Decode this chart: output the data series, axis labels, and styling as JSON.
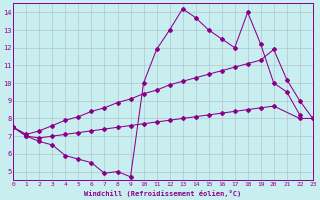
{
  "xlabel": "Windchill (Refroidissement éolien,°C)",
  "bg_color": "#c8eef0",
  "line_color": "#8b008b",
  "grid_color": "#b0c8d0",
  "xlim": [
    0,
    23
  ],
  "ylim": [
    4.5,
    14.5
  ],
  "yticks": [
    5,
    6,
    7,
    8,
    9,
    10,
    11,
    12,
    13,
    14
  ],
  "xticks": [
    0,
    1,
    2,
    3,
    4,
    5,
    6,
    7,
    8,
    9,
    10,
    11,
    12,
    13,
    14,
    15,
    16,
    17,
    18,
    19,
    20,
    21,
    22,
    23
  ],
  "line1_x": [
    0,
    1,
    2,
    3,
    4,
    5,
    6,
    7,
    8,
    9,
    10,
    11,
    12,
    13,
    14,
    15,
    16,
    17,
    18,
    19,
    20,
    21,
    22
  ],
  "line1_y": [
    7.5,
    7.0,
    6.7,
    6.5,
    5.9,
    5.7,
    5.5,
    4.9,
    5.0,
    4.7,
    10.0,
    11.9,
    13.0,
    14.2,
    13.7,
    13.0,
    12.5,
    12.0,
    14.0,
    12.2,
    10.0,
    9.5,
    8.2
  ],
  "line2_x": [
    0,
    1,
    2,
    3,
    4,
    5,
    6,
    7,
    8,
    9,
    10,
    11,
    12,
    13,
    14,
    15,
    16,
    17,
    18,
    19,
    20,
    21,
    22,
    23
  ],
  "line2_y": [
    7.5,
    7.1,
    7.3,
    7.6,
    7.9,
    8.1,
    8.4,
    8.6,
    8.9,
    9.1,
    9.4,
    9.6,
    9.9,
    10.1,
    10.3,
    10.5,
    10.7,
    10.9,
    11.1,
    11.3,
    11.9,
    10.2,
    9.0,
    8.0
  ],
  "line3_x": [
    0,
    1,
    2,
    3,
    4,
    5,
    6,
    7,
    8,
    9,
    10,
    11,
    12,
    13,
    14,
    15,
    16,
    17,
    18,
    19,
    20,
    22,
    23
  ],
  "line3_y": [
    7.5,
    7.0,
    6.9,
    7.0,
    7.1,
    7.2,
    7.3,
    7.4,
    7.5,
    7.6,
    7.7,
    7.8,
    7.9,
    8.0,
    8.1,
    8.2,
    8.3,
    8.4,
    8.5,
    8.6,
    8.7,
    8.0,
    8.0
  ]
}
